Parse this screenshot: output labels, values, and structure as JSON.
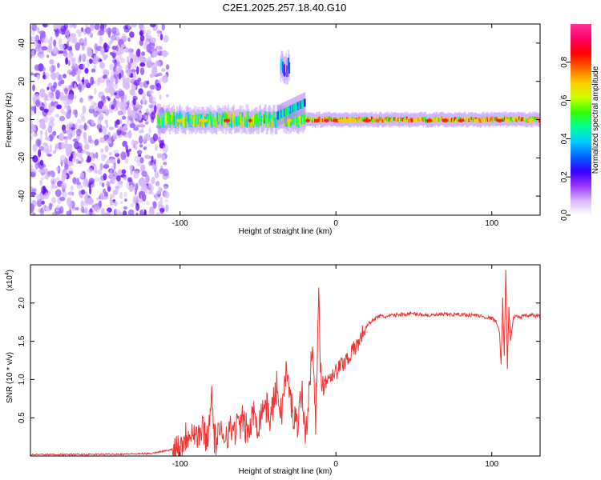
{
  "title": "C2E1.2025.257.18.40.G10",
  "chart_data": [
    {
      "type": "heatmap",
      "name": "spectrogram",
      "xlabel": "Height of straight line (km)",
      "ylabel": "Frequency (Hz)",
      "xlim": [
        -196,
        131
      ],
      "ylim": [
        -50,
        50
      ],
      "xticks": [
        -100,
        0,
        100
      ],
      "yticks": [
        -40,
        -20,
        0,
        20,
        40
      ],
      "noise_region_x": [
        -196,
        -112
      ],
      "signal_band_hz": [
        -5,
        5
      ],
      "colorbar": {
        "label": "Normalized spectral amplitude",
        "range": [
          0,
          1
        ],
        "ticks": [
          0.0,
          0.2,
          0.4,
          0.6,
          0.8
        ],
        "colors": [
          "#ffffff",
          "#d9b3ff",
          "#9933ff",
          "#3300ff",
          "#0066ff",
          "#00ccff",
          "#00ff99",
          "#33ff00",
          "#ccff00",
          "#ffcc00",
          "#ff6600",
          "#ff0000",
          "#ff0066",
          "#ff3399"
        ]
      },
      "features": [
        {
          "x": [
            -115,
            -20
          ],
          "freq": [
            -4,
            4
          ],
          "amplitude": 0.45,
          "note": "noisy band"
        },
        {
          "x": [
            -20,
            131
          ],
          "freq": [
            -1.5,
            1.5
          ],
          "amplitude": 0.6,
          "note": "steady carrier"
        },
        {
          "x": [
            -38,
            -20
          ],
          "freq": [
            2,
            9
          ],
          "amplitude": 0.3,
          "note": "rising trace"
        },
        {
          "x": [
            -36,
            -30
          ],
          "freq": [
            22,
            32
          ],
          "amplitude": 0.2,
          "note": "faint points"
        }
      ]
    },
    {
      "type": "line",
      "name": "snr",
      "xlabel": "Height of straight line (km)",
      "ylabel": "SNR (10 * v/v)",
      "scale_label": "(x10",
      "scale_exponent": "4",
      "xlim": [
        -196,
        131
      ],
      "ylim": [
        0,
        2.5
      ],
      "xticks": [
        -100,
        0,
        100
      ],
      "yticks": [
        0.5,
        1.0,
        1.5,
        2.0
      ],
      "ytick_labels": [
        "0.5",
        "1.0",
        "1.5",
        "2.0"
      ],
      "color": "#ee3333",
      "series": [
        {
          "name": "SNR",
          "x": [
            -196,
            -160,
            -120,
            -106,
            -100,
            -95,
            -92,
            -90,
            -85,
            -82,
            -80,
            -78,
            -72,
            -65,
            -60,
            -56,
            -52,
            -50,
            -46,
            -42,
            -38,
            -35,
            -32,
            -28,
            -25,
            -22,
            -20,
            -18,
            -16,
            -15,
            -13,
            -11,
            -10,
            -8,
            -6,
            -4,
            -2,
            0,
            4,
            8,
            12,
            15,
            18,
            22,
            25,
            28,
            32,
            40,
            50,
            60,
            70,
            80,
            90,
            95,
            100,
            103,
            105,
            106,
            107,
            108,
            109,
            110,
            111,
            112,
            114,
            118,
            125,
            131
          ],
          "y": [
            0.02,
            0.02,
            0.03,
            0.08,
            0.15,
            0.3,
            0.4,
            0.25,
            0.35,
            0.2,
            0.9,
            0.2,
            0.3,
            0.35,
            0.45,
            0.3,
            0.6,
            0.4,
            0.7,
            0.5,
            0.9,
            0.55,
            1.1,
            0.6,
            0.4,
            0.9,
            0.3,
            0.55,
            1.15,
            1.65,
            0.5,
            2.0,
            1.2,
            0.9,
            1.0,
            1.05,
            1.1,
            1.1,
            1.2,
            1.3,
            1.4,
            1.5,
            1.65,
            1.75,
            1.8,
            1.83,
            1.82,
            1.85,
            1.86,
            1.84,
            1.85,
            1.85,
            1.84,
            1.82,
            1.8,
            1.75,
            1.6,
            1.2,
            2.05,
            1.3,
            2.45,
            1.15,
            1.95,
            1.5,
            1.82,
            1.82,
            1.84,
            1.83
          ]
        }
      ]
    }
  ]
}
